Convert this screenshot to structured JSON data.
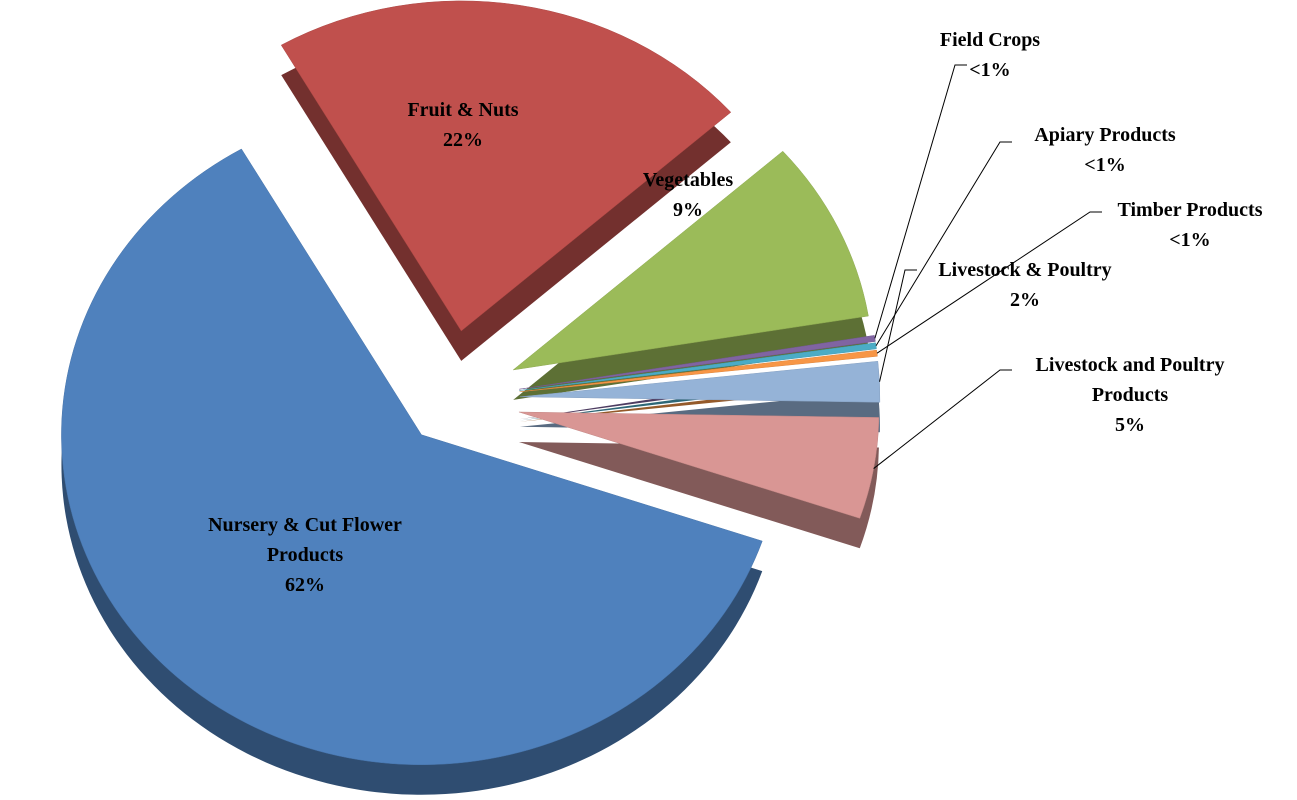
{
  "chart_data": {
    "type": "pie",
    "categories": [
      "Fruit & Nuts",
      "Vegetables",
      "Field Crops",
      "Apiary Products",
      "Timber Products",
      "Livestock & Poultry",
      "Livestock and Poultry Products",
      "Nursery & Cut Flower Products"
    ],
    "values": [
      22,
      9,
      0.3,
      0.3,
      0.3,
      2,
      5,
      62
    ],
    "value_labels": [
      "22%",
      "9%",
      "<1%",
      "<1%",
      "<1%",
      "2%",
      "5%",
      "62%"
    ],
    "colors": [
      "#c0504d",
      "#9bbb59",
      "#8064a2",
      "#4bacc6",
      "#f79646",
      "#95b3d7",
      "#d99694",
      "#4f81bd"
    ]
  }
}
